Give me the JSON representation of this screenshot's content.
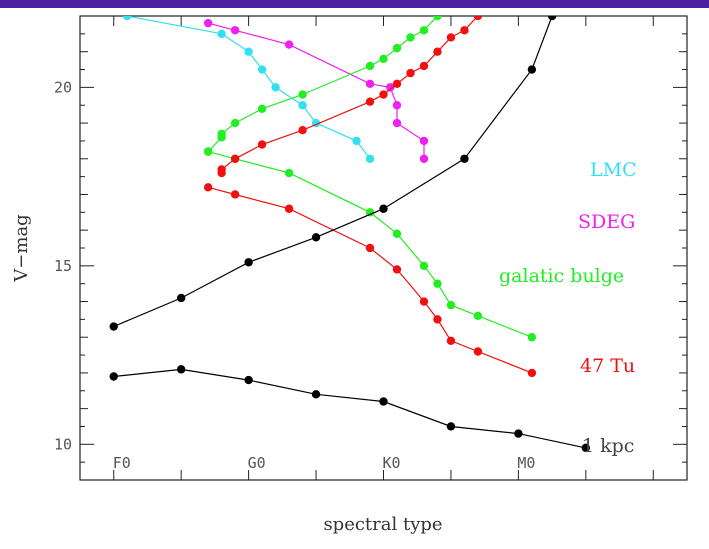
{
  "chart_data": {
    "type": "line",
    "title": "",
    "xlabel": "spectral type",
    "ylabel": "V−mag",
    "xlim": [
      -0.5,
      8.5
    ],
    "ylim": [
      9.0,
      22.0
    ],
    "x_ticks": [
      0,
      1,
      2,
      3,
      4,
      5,
      6,
      7,
      8
    ],
    "x_tick_labels": [
      {
        "x": 0,
        "label": "F0"
      },
      {
        "x": 2,
        "label": "G0"
      },
      {
        "x": 4,
        "label": "K0"
      },
      {
        "x": 6,
        "label": "M0"
      }
    ],
    "y_tick_labels": [
      {
        "y": 10,
        "label": "10"
      },
      {
        "y": 15,
        "label": "15"
      },
      {
        "y": 20,
        "label": "20"
      }
    ],
    "grid": false,
    "legend_placement": "right",
    "series": [
      {
        "name": "LMC",
        "color": "#33e0f0",
        "points": [
          [
            0.2,
            22.0
          ],
          [
            1.6,
            21.5
          ],
          [
            2.0,
            21.0
          ],
          [
            2.2,
            20.5
          ],
          [
            2.4,
            20.0
          ],
          [
            2.8,
            19.5
          ],
          [
            3.0,
            19.0
          ],
          [
            3.6,
            18.5
          ],
          [
            3.8,
            18.0
          ]
        ]
      },
      {
        "name": "SDEG",
        "color": "#f020f0",
        "points": [
          [
            1.4,
            21.8
          ],
          [
            1.8,
            21.6
          ],
          [
            2.6,
            21.2
          ],
          [
            3.8,
            20.1
          ],
          [
            4.1,
            20.0
          ],
          [
            4.2,
            19.5
          ],
          [
            4.2,
            19.0
          ],
          [
            4.6,
            18.5
          ],
          [
            4.6,
            18.0
          ]
        ]
      },
      {
        "name": "galatic bulge",
        "color": "#22ee22",
        "points": [
          [
            1.4,
            18.2
          ],
          [
            1.6,
            18.6
          ],
          [
            1.6,
            18.7
          ],
          [
            1.8,
            19.0
          ],
          [
            2.2,
            19.4
          ],
          [
            2.8,
            19.8
          ],
          [
            3.8,
            20.6
          ],
          [
            4.0,
            20.8
          ],
          [
            4.2,
            21.1
          ],
          [
            4.4,
            21.4
          ],
          [
            4.6,
            21.6
          ],
          [
            4.8,
            22.0
          ]
        ]
      },
      {
        "name": "galatic bulge",
        "color": "#22ee22",
        "points": [
          [
            1.4,
            18.2
          ],
          [
            1.8,
            18.0
          ],
          [
            2.6,
            17.6
          ],
          [
            3.8,
            16.5
          ],
          [
            4.2,
            15.9
          ],
          [
            4.6,
            15.0
          ],
          [
            4.8,
            14.5
          ],
          [
            5.0,
            13.9
          ],
          [
            5.4,
            13.6
          ],
          [
            6.2,
            13.0
          ]
        ]
      },
      {
        "name": "47 Tu",
        "color": "#f01010",
        "points": [
          [
            1.6,
            17.6
          ],
          [
            1.6,
            17.7
          ],
          [
            1.8,
            18.0
          ],
          [
            2.2,
            18.4
          ],
          [
            2.8,
            18.8
          ],
          [
            3.8,
            19.6
          ],
          [
            4.0,
            19.8
          ],
          [
            4.2,
            20.1
          ],
          [
            4.4,
            20.4
          ],
          [
            4.6,
            20.6
          ],
          [
            4.8,
            21.0
          ],
          [
            5.0,
            21.4
          ],
          [
            5.2,
            21.6
          ],
          [
            5.4,
            22.0
          ]
        ]
      },
      {
        "name": "47 Tu",
        "color": "#f01010",
        "points": [
          [
            1.4,
            17.2
          ],
          [
            1.8,
            17.0
          ],
          [
            2.6,
            16.6
          ],
          [
            3.8,
            15.5
          ],
          [
            4.2,
            14.9
          ],
          [
            4.6,
            14.0
          ],
          [
            4.8,
            13.5
          ],
          [
            5.0,
            12.9
          ],
          [
            5.4,
            12.6
          ],
          [
            6.2,
            12.0
          ]
        ]
      },
      {
        "name": "1 kpc",
        "color": "#000000",
        "points": [
          [
            0,
            13.3
          ],
          [
            1,
            14.1
          ],
          [
            2,
            15.1
          ],
          [
            3,
            15.8
          ],
          [
            4,
            16.6
          ],
          [
            5.2,
            18.0
          ],
          [
            6.2,
            20.5
          ],
          [
            6.5,
            22.0
          ]
        ]
      },
      {
        "name": "1 kpc",
        "color": "#000000",
        "points": [
          [
            0,
            11.9
          ],
          [
            1,
            12.1
          ],
          [
            2,
            11.8
          ],
          [
            3,
            11.4
          ],
          [
            4,
            11.2
          ],
          [
            5,
            10.5
          ],
          [
            6,
            10.3
          ],
          [
            7,
            9.9
          ]
        ]
      }
    ],
    "legend": [
      {
        "label": "LMC",
        "color": "#33e0f0"
      },
      {
        "label": "SDEG",
        "color": "#f020f0"
      },
      {
        "label": "galatic bulge",
        "color": "#22ee22"
      },
      {
        "label": "47 Tu",
        "color": "#f01010"
      },
      {
        "label": "1 kpc",
        "color": "#444444"
      }
    ]
  }
}
